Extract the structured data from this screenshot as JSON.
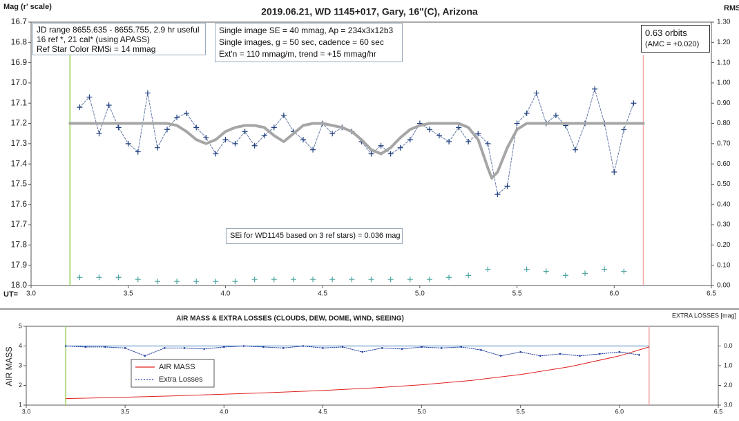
{
  "chart_data": [
    {
      "type": "line",
      "title": "2019.06.21, WD 1145+017, Gary, 16\"(C), Arizona",
      "ylabel": "Mag (r' scale)",
      "y2label": "RMS i",
      "xlabel": "UT=",
      "xlim": [
        3,
        6.5
      ],
      "xticks": [
        {
          "value": 3,
          "label": "3.0"
        },
        3.5,
        {
          "value": 4,
          "label": "4.0"
        },
        4.5,
        {
          "value": 5,
          "label": "5.0"
        },
        5.5,
        {
          "value": 6,
          "label": "6.0"
        },
        6.5
      ],
      "ylim": [
        18,
        16.7
      ],
      "yticks": [
        16.7,
        16.8,
        16.9,
        {
          "value": 17,
          "label": "17.0"
        },
        17.1,
        17.2,
        17.3,
        17.4,
        17.5,
        17.6,
        17.7,
        17.8,
        17.9,
        {
          "value": 18,
          "label": "18.0"
        }
      ],
      "y2lim": [
        0,
        1.3
      ],
      "y2ticks": [
        {
          "value": 0,
          "label": "0.00"
        },
        {
          "value": 0.1,
          "label": "0.10"
        },
        {
          "value": 0.2,
          "label": "0.20"
        },
        {
          "value": 0.3,
          "label": "0.30"
        },
        {
          "value": 0.4,
          "label": "0.40"
        },
        {
          "value": 0.5,
          "label": "0.50"
        },
        {
          "value": 0.6,
          "label": "0.60"
        },
        {
          "value": 0.7,
          "label": "0.70"
        },
        {
          "value": 0.8,
          "label": "0.80"
        },
        {
          "value": 0.9,
          "label": "0.90"
        },
        {
          "value": 1,
          "label": "1.00"
        },
        {
          "value": 1.1,
          "label": "1.10"
        },
        {
          "value": 1.2,
          "label": "1.20"
        },
        {
          "value": 1.3,
          "label": "1.30"
        }
      ],
      "vlines": [
        {
          "x": 3.2,
          "color": "#92d050"
        },
        {
          "x": 6.15,
          "color": "#f4a6a6"
        }
      ],
      "series": [
        {
          "color": "#1f3f7f",
          "marker": "+",
          "line": "dashed",
          "x": [
            3.25,
            3.3,
            3.35,
            3.4,
            3.45,
            3.5,
            3.55,
            3.6,
            3.65,
            3.7,
            3.75,
            3.8,
            3.85,
            3.9,
            3.95,
            4.0,
            4.05,
            4.1,
            4.15,
            4.2,
            4.25,
            4.3,
            4.35,
            4.4,
            4.45,
            4.5,
            4.55,
            4.6,
            4.65,
            4.7,
            4.75,
            4.8,
            4.85,
            4.9,
            4.95,
            5.0,
            5.05,
            5.1,
            5.15,
            5.2,
            5.25,
            5.3,
            5.35,
            5.4,
            5.45,
            5.5,
            5.55,
            5.6,
            5.65,
            5.7,
            5.75,
            5.8,
            5.85,
            5.9,
            5.95,
            6.0,
            6.05,
            6.1
          ],
          "values": [
            17.12,
            17.07,
            17.25,
            17.11,
            17.22,
            17.3,
            17.34,
            17.05,
            17.32,
            17.23,
            17.17,
            17.15,
            17.22,
            17.27,
            17.35,
            17.28,
            17.3,
            17.24,
            17.31,
            17.26,
            17.22,
            17.16,
            17.24,
            17.28,
            17.33,
            17.2,
            17.25,
            17.22,
            17.24,
            17.29,
            17.35,
            17.31,
            17.35,
            17.32,
            17.28,
            17.2,
            17.23,
            17.26,
            17.29,
            17.22,
            17.29,
            17.25,
            17.3,
            17.55,
            17.51,
            17.2,
            17.15,
            17.05,
            17.2,
            17.16,
            17.21,
            17.33,
            17.2,
            17.03,
            17.2,
            17.44,
            17.23,
            17.1
          ]
        },
        {
          "color": "#a6a6a6",
          "line": "solid",
          "width": 4,
          "x": [
            3.2,
            3.7,
            3.75,
            3.8,
            3.85,
            3.9,
            3.95,
            4.0,
            4.05,
            4.1,
            4.15,
            4.2,
            4.25,
            4.3,
            4.35,
            4.4,
            4.45,
            4.5,
            4.55,
            4.6,
            4.65,
            4.7,
            4.75,
            4.8,
            4.85,
            4.9,
            4.95,
            5.0,
            5.05,
            5.2,
            5.25,
            5.3,
            5.35,
            5.37,
            5.4,
            5.45,
            5.5,
            5.55,
            5.6,
            6.15
          ],
          "values": [
            17.2,
            17.2,
            17.21,
            17.24,
            17.28,
            17.3,
            17.28,
            17.24,
            17.22,
            17.21,
            17.21,
            17.22,
            17.26,
            17.29,
            17.25,
            17.21,
            17.2,
            17.2,
            17.21,
            17.22,
            17.24,
            17.28,
            17.33,
            17.35,
            17.32,
            17.27,
            17.23,
            17.21,
            17.2,
            17.2,
            17.22,
            17.28,
            17.42,
            17.47,
            17.44,
            17.32,
            17.23,
            17.2,
            17.2,
            17.2
          ]
        },
        {
          "color": "#4aa3a0",
          "marker": "+",
          "axis": "y2",
          "x": [
            3.25,
            3.35,
            3.45,
            3.55,
            3.65,
            3.75,
            3.85,
            3.95,
            4.05,
            4.15,
            4.25,
            4.35,
            4.45,
            4.55,
            4.65,
            4.75,
            4.85,
            4.95,
            5.05,
            5.15,
            5.25,
            5.35,
            5.45,
            5.55,
            5.65,
            5.75,
            5.85,
            5.95,
            6.05
          ],
          "values": [
            0.04,
            0.04,
            0.04,
            0.03,
            0.02,
            0.02,
            0.02,
            0.02,
            0.02,
            0.03,
            0.03,
            0.03,
            0.03,
            0.03,
            0.03,
            0.03,
            0.03,
            0.03,
            0.03,
            0.04,
            0.05,
            0.08,
            null,
            0.08,
            0.07,
            0.05,
            0.06,
            0.08,
            0.07
          ]
        }
      ],
      "annotations": [
        {
          "lines": [
            "JD range 8655.635 - 8655.755, 2.9 hr useful",
            "16 ref *, 21 cal* (using APASS)",
            "Ref Star Color RMSi = 14 mmag"
          ]
        },
        {
          "lines": [
            "Single image SE = 40 mmag, Ap = 234x3x12b3",
            "Single images, g = 50 sec, cadence = 60 sec",
            "Ext'n = 110 mmag/m, trend = +15 mmag/hr"
          ]
        },
        {
          "lines": [
            "0.63 orbits",
            "(AMC = +0.020)"
          ]
        },
        {
          "lines": [
            "SEi for WD1145 based on 3 ref stars) = 0.036 mag"
          ]
        }
      ]
    },
    {
      "type": "line",
      "title": "AIR MASS & EXTRA LOSSES (CLOUDS, DEW, DOME, WIND, SEEING)",
      "ylabel": "AIR MASS",
      "y2label": "EXTRA LOSSES [mag]",
      "xlim": [
        3,
        6.5
      ],
      "xticks": [
        {
          "value": 3,
          "label": "3.0"
        },
        3.5,
        {
          "value": 4,
          "label": "4.0"
        },
        4.5,
        {
          "value": 5,
          "label": "5.0"
        },
        5.5,
        {
          "value": 6,
          "label": "6.0"
        },
        6.5
      ],
      "ylim": [
        1,
        5
      ],
      "yticks": [
        1,
        2,
        3,
        4,
        5
      ],
      "y2lim": [
        3,
        -1
      ],
      "y2ticks": [
        {
          "value": 0,
          "label": "0.0"
        },
        {
          "value": 1,
          "label": "1.0"
        },
        {
          "value": 2,
          "label": "2.0"
        },
        {
          "value": 3,
          "label": "3.0"
        }
      ],
      "vlines": [
        {
          "x": 3.2,
          "color": "#92d050"
        },
        {
          "x": 6.15,
          "color": "#f4a6a6"
        }
      ],
      "hlines": [
        {
          "y": 4,
          "color": "#2e75b6"
        }
      ],
      "series": [
        {
          "name": "AIR MASS",
          "color": "#e02020",
          "line": "solid",
          "x": [
            3.2,
            3.5,
            3.75,
            4.0,
            4.25,
            4.5,
            4.75,
            5.0,
            5.25,
            5.5,
            5.75,
            6.0,
            6.15
          ],
          "values": [
            1.33,
            1.4,
            1.47,
            1.55,
            1.64,
            1.74,
            1.87,
            2.03,
            2.25,
            2.55,
            2.95,
            3.5,
            3.95
          ]
        },
        {
          "name": "Extra Losses",
          "color": "#1f3f9f",
          "line": "dotted",
          "marker": "dot",
          "axis": "y2",
          "x": [
            3.2,
            3.3,
            3.4,
            3.5,
            3.6,
            3.7,
            3.8,
            3.9,
            4.0,
            4.1,
            4.2,
            4.3,
            4.4,
            4.5,
            4.6,
            4.7,
            4.8,
            4.9,
            5.0,
            5.1,
            5.2,
            5.3,
            5.4,
            5.5,
            5.6,
            5.7,
            5.8,
            5.9,
            6.0,
            6.1
          ],
          "values": [
            0,
            0.05,
            0.05,
            0.1,
            0.5,
            0.1,
            0.1,
            0.15,
            0.05,
            0,
            0.05,
            0.1,
            0,
            0.1,
            0.05,
            0.3,
            0.1,
            0.15,
            0.05,
            0.1,
            0.05,
            0.2,
            0.5,
            0.3,
            0.5,
            0.4,
            0.5,
            0.4,
            0.3,
            0.45
          ]
        }
      ]
    }
  ]
}
